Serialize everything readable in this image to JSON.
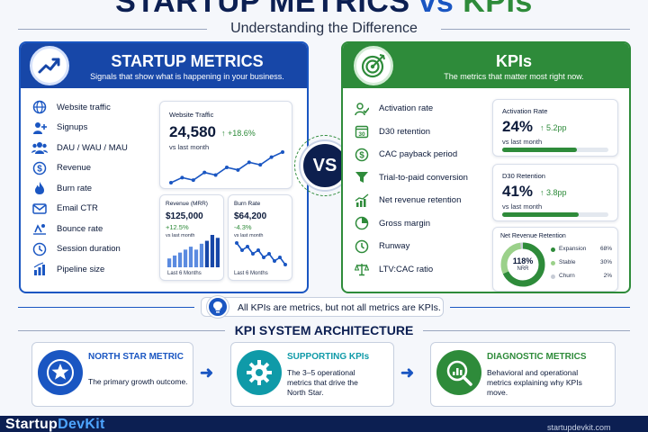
{
  "header": {
    "title_left": "STARTUP METRICS",
    "title_vs": "vs",
    "title_right": "KPIs",
    "subtitle": "Understanding the Difference"
  },
  "metrics_panel": {
    "title": "STARTUP METRICS",
    "subtitle": "Signals that show what is happening in your business.",
    "icon": "trend-chart-icon",
    "items": [
      {
        "label": "Website traffic",
        "icon": "globe-icon"
      },
      {
        "label": "Signups",
        "icon": "user-plus-icon"
      },
      {
        "label": "DAU / WAU / MAU",
        "icon": "users-icon"
      },
      {
        "label": "Revenue",
        "icon": "dollar-icon"
      },
      {
        "label": "Burn rate",
        "icon": "flame-icon"
      },
      {
        "label": "Email CTR",
        "icon": "mail-icon"
      },
      {
        "label": "Bounce rate",
        "icon": "bounce-icon"
      },
      {
        "label": "Session duration",
        "icon": "clock-icon"
      },
      {
        "label": "Pipeline size",
        "icon": "bar-chart-icon"
      }
    ],
    "traffic_card": {
      "title": "Website Traffic",
      "value": "24,580",
      "delta": "↑ +18.6%",
      "note": "vs last month",
      "series": [
        10,
        14,
        12,
        18,
        16,
        22,
        20,
        26,
        24,
        30,
        34
      ]
    },
    "revenue_card": {
      "title": "Revenue (MRR)",
      "value": "$125,000",
      "delta": "+12.5%",
      "note": "vs last month",
      "footer": "Last 6 Months",
      "bars": [
        3,
        4,
        5,
        6,
        7,
        6,
        8,
        9,
        11,
        10
      ]
    },
    "burn_card": {
      "title": "Burn Rate",
      "value": "$64,200",
      "delta": "-4.3%",
      "note": "vs last month",
      "footer": "Last 6 Months",
      "series": [
        9,
        7,
        8,
        6,
        7,
        5,
        6,
        4,
        5,
        3
      ]
    }
  },
  "vs_label": "VS",
  "kpi_panel": {
    "title": "KPIs",
    "subtitle": "The metrics that matter most right now.",
    "icon": "target-icon",
    "items": [
      {
        "label": "Activation rate",
        "icon": "user-check-icon"
      },
      {
        "label": "D30 retention",
        "icon": "calendar-30-icon"
      },
      {
        "label": "CAC payback period",
        "icon": "dollar-icon"
      },
      {
        "label": "Trial-to-paid conversion",
        "icon": "funnel-icon"
      },
      {
        "label": "Net revenue retention",
        "icon": "growth-chart-icon"
      },
      {
        "label": "Gross margin",
        "icon": "pie-icon"
      },
      {
        "label": "Runway",
        "icon": "timer-icon"
      },
      {
        "label": "LTV:CAC ratio",
        "icon": "scale-icon"
      }
    ],
    "activation_card": {
      "title": "Activation Rate",
      "value": "24%",
      "delta": "↑ 5.2pp",
      "note": "vs last month",
      "progress": 0.7
    },
    "retention_card": {
      "title": "D30 Retention",
      "value": "41%",
      "delta": "↑ 3.8pp",
      "note": "vs last month",
      "progress": 0.72
    },
    "nrr_card": {
      "title": "Net Revenue Retention",
      "center_value": "118%",
      "center_label": "NRR",
      "segments": [
        {
          "label": "Expansion",
          "value": "68%",
          "share": 68,
          "color": "#2e8b3a"
        },
        {
          "label": "Stable",
          "value": "30%",
          "share": 30,
          "color": "#9bd18a"
        },
        {
          "label": "Churn",
          "value": "2%",
          "share": 2,
          "color": "#c7ccd6"
        }
      ]
    }
  },
  "note": {
    "text": "All KPIs are metrics, but not all metrics are KPIs.",
    "icon": "lightbulb-icon"
  },
  "architecture": {
    "title": "KPI SYSTEM ARCHITECTURE",
    "cards": [
      {
        "title": "NORTH STAR METRIC",
        "desc": "The primary growth outcome.",
        "icon": "star-icon",
        "accent": "#1a56c2"
      },
      {
        "title": "SUPPORTING KPIs",
        "desc": "The 3–5 operational metrics that drive the North Star.",
        "icon": "gear-icon",
        "accent": "#0f9aa8"
      },
      {
        "title": "DIAGNOSTIC METRICS",
        "desc": "Behavioral and operational metrics explaining why KPIs move.",
        "icon": "magnifier-chart-icon",
        "accent": "#2e8b3a"
      }
    ]
  },
  "footer": {
    "brand_a": "Startup",
    "brand_b": "DevKit",
    "right_text": "startupdevkit.com"
  },
  "colors": {
    "blue": "#1a56c2",
    "navy": "#0c1f52",
    "green": "#2e8b3a",
    "teal": "#0f9aa8"
  }
}
